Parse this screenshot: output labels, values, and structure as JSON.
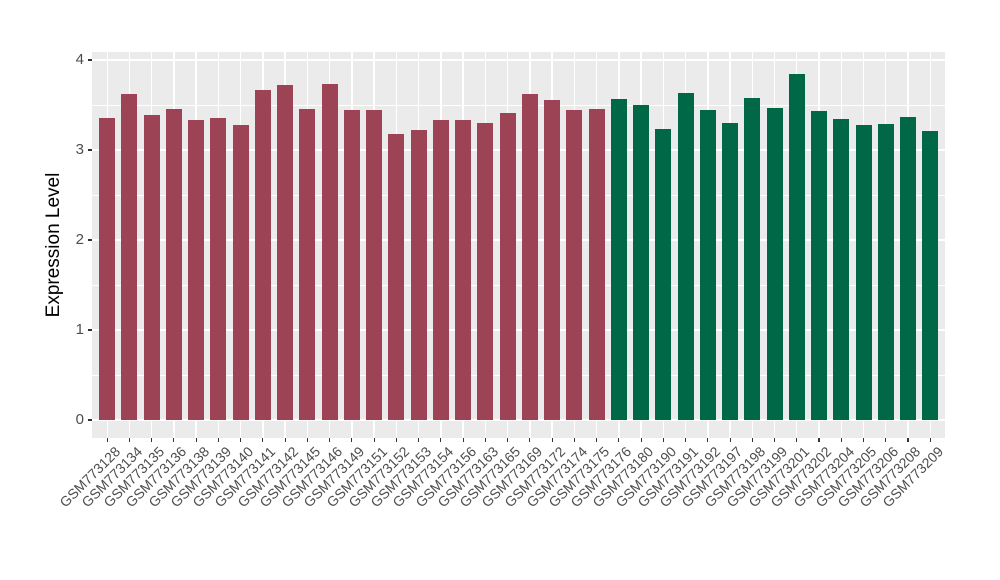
{
  "chart_data": {
    "type": "bar",
    "title": "",
    "xlabel": "",
    "ylabel": "Expression Level",
    "ylim": [
      0,
      4.09
    ],
    "yticks": [
      0,
      1,
      2,
      3,
      4
    ],
    "y_minor_ticks": [
      0.5,
      1.5,
      2.5,
      3.5
    ],
    "grid": "white major and minor horizontal lines plus white vertical major lines at category centers on grey panel",
    "legend_position": "none",
    "panel_bg": "#EBEBEB",
    "grid_color": "#FFFFFF",
    "axis_text_color": "#4D4D4D",
    "axis_title_color": "#000000",
    "series": [
      {
        "name": "group-maroon",
        "color": "#9C4355",
        "categories": [
          "GSM773128",
          "GSM773134",
          "GSM773135",
          "GSM773136",
          "GSM773138",
          "GSM773139",
          "GSM773140",
          "GSM773141",
          "GSM773142",
          "GSM773145",
          "GSM773146",
          "GSM773149",
          "GSM773151",
          "GSM773152",
          "GSM773153",
          "GSM773154",
          "GSM773156",
          "GSM773163",
          "GSM773165",
          "GSM773169",
          "GSM773172",
          "GSM773174",
          "GSM773175"
        ],
        "values": [
          3.36,
          3.62,
          3.39,
          3.46,
          3.33,
          3.36,
          3.28,
          3.67,
          3.72,
          3.46,
          3.73,
          3.44,
          3.44,
          3.18,
          3.22,
          3.33,
          3.33,
          3.3,
          3.41,
          3.62,
          3.56,
          3.45,
          3.46
        ]
      },
      {
        "name": "group-green",
        "color": "#006747",
        "categories": [
          "GSM773176",
          "GSM773180",
          "GSM773190",
          "GSM773191",
          "GSM773192",
          "GSM773197",
          "GSM773198",
          "GSM773199",
          "GSM773201",
          "GSM773202",
          "GSM773204",
          "GSM773205",
          "GSM773206",
          "GSM773208",
          "GSM773209"
        ],
        "values": [
          3.57,
          3.5,
          3.23,
          3.63,
          3.44,
          3.3,
          3.58,
          3.47,
          3.84,
          3.43,
          3.34,
          3.28,
          3.29,
          3.37,
          3.21
        ]
      }
    ]
  }
}
